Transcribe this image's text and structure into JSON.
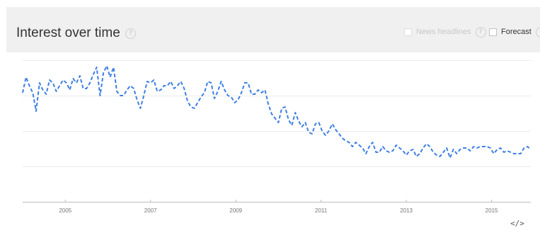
{
  "header": {
    "title": "Interest over time",
    "help_glyph": "?",
    "options": {
      "news_headlines": {
        "label": "News headlines",
        "checked": false
      },
      "forecast": {
        "label": "Forecast",
        "checked": false
      }
    }
  },
  "embed": {
    "icon": "code-embed-icon",
    "glyph": "</>"
  },
  "colors": {
    "line": "#3f7fe3",
    "header_bg": "#f0f0f0"
  },
  "chart_data": {
    "type": "line",
    "title": "Interest over time",
    "xlabel": "",
    "ylabel": "",
    "xlim": [
      2004.0,
      2015.92
    ],
    "ylim": [
      0,
      100
    ],
    "grid": true,
    "x_ticks": [
      2005,
      2007,
      2009,
      2011,
      2013,
      2015
    ],
    "x_tick_labels": [
      "2005",
      "2007",
      "2009",
      "2011",
      "2013",
      "2015"
    ],
    "line_style": "dashed",
    "series": [
      {
        "values": [
          77,
          88,
          82,
          77,
          64,
          84,
          79,
          76,
          86,
          84,
          78,
          82,
          86,
          84,
          79,
          87,
          84,
          89,
          80,
          80,
          84,
          90,
          95,
          75,
          91,
          96,
          88,
          95,
          78,
          75,
          75,
          79,
          82,
          80,
          72,
          66,
          75,
          85,
          84,
          86,
          78,
          79,
          82,
          82,
          85,
          80,
          82,
          85,
          80,
          71,
          67,
          66,
          70,
          74,
          77,
          85,
          84,
          73,
          78,
          85,
          79,
          75,
          74,
          70,
          72,
          77,
          84,
          84,
          76,
          76,
          79,
          77,
          79,
          69,
          62,
          59,
          56,
          66,
          67,
          58,
          54,
          63,
          57,
          53,
          56,
          49,
          48,
          55,
          56,
          50,
          47,
          50,
          55,
          51,
          48,
          45,
          43,
          42,
          39,
          42,
          40,
          38,
          34,
          39,
          42,
          35,
          35,
          39,
          36,
          35,
          36,
          40,
          38,
          36,
          33,
          36,
          37,
          32,
          34,
          38,
          41,
          39,
          35,
          33,
          32,
          35,
          38,
          31,
          37,
          34,
          37,
          38,
          38,
          36,
          39,
          38,
          39,
          39,
          39,
          38,
          34,
          37,
          38,
          35,
          36,
          35,
          34,
          34,
          34,
          38,
          39,
          37
        ]
      }
    ]
  }
}
